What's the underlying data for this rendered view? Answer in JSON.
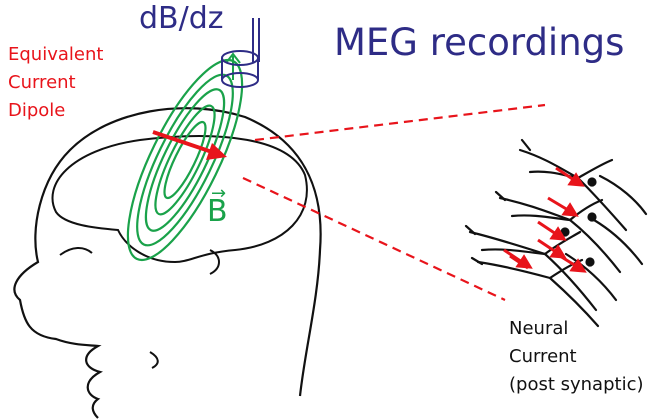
{
  "title": "MEG recordings",
  "sensor_label": "dB/dz",
  "dipole_label": [
    "Equivalent",
    "Current",
    "Dipole"
  ],
  "field_label": "B",
  "field_arrow": "→",
  "neural_label": [
    "Neural",
    "Current",
    "(post synaptic)"
  ],
  "colors": {
    "title": "#2e2c86",
    "dipole": "#e8141b",
    "field": "#1aa24a",
    "outline": "#111111"
  },
  "icons": [
    "head-outline",
    "brain-outline",
    "field-lines",
    "gradiometer-coil",
    "dipole-arrow",
    "neuron-cluster"
  ]
}
